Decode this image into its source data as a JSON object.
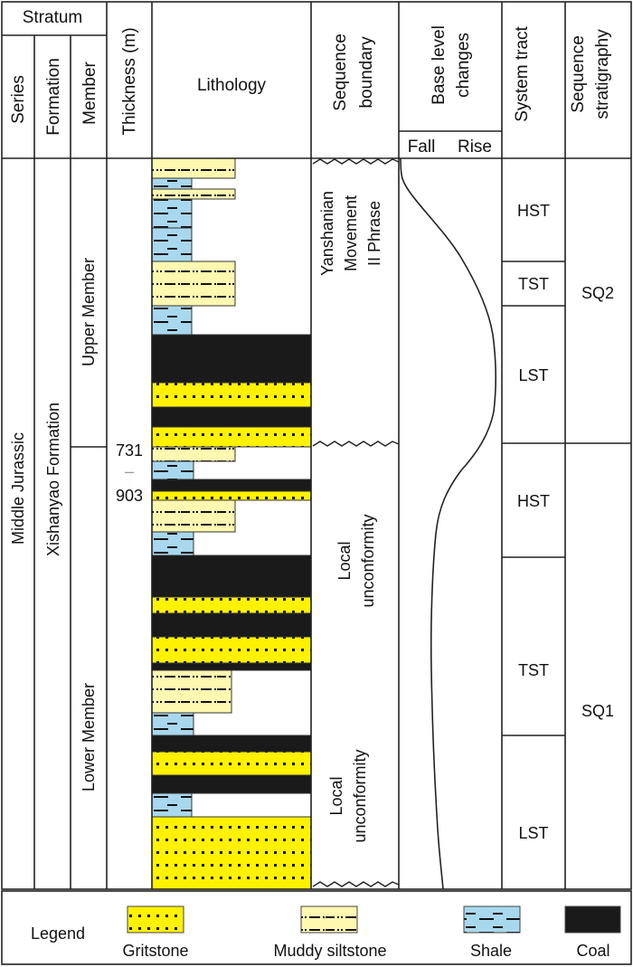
{
  "header": {
    "stratum": "Stratum",
    "series": "Series",
    "formation": "Formation",
    "member": "Member",
    "thickness": "Thickness (m)",
    "lithology": "Lithology",
    "sequence_boundary": [
      "Sequence",
      "boundary"
    ],
    "base_level": [
      "Base level",
      "changes"
    ],
    "fall": "Fall",
    "rise": "Rise",
    "system_tract": "System tract",
    "sequence_stratigraphy": [
      "Sequence",
      "stratigraphy"
    ]
  },
  "body": {
    "series": "Middle Jurassic",
    "formation": "Xishanyao Formation",
    "members": [
      "Upper Member",
      "Lower Member"
    ],
    "thickness": {
      "min": "731",
      "sep": "–",
      "max": "903"
    },
    "boundaries": [
      [
        "Yanshanian",
        "Movement",
        "II Phrase"
      ],
      [
        "Local",
        "unconformity"
      ],
      [
        "Local",
        "unconformity"
      ]
    ],
    "system_tracts": [
      "HST",
      "TST",
      "LST",
      "HST",
      "TST",
      "LST"
    ],
    "sequences": [
      "SQ2",
      "SQ1"
    ],
    "lithology_layers": [
      "silt",
      "shale",
      "silt",
      "shale",
      "shale",
      "silt",
      "shale",
      "coal",
      "grit",
      "coal",
      "grit",
      "silt",
      "shale",
      "coal",
      "grit",
      "silt",
      "shale",
      "coal",
      "grit",
      "coal",
      "grit",
      "coal",
      "silt",
      "shale",
      "coal",
      "grit",
      "coal",
      "shale",
      "grit"
    ]
  },
  "legend": {
    "title": "Legend",
    "items": [
      {
        "key": "grit",
        "label": "Gritstone"
      },
      {
        "key": "silt",
        "label": "Muddy siltstone"
      },
      {
        "key": "shale",
        "label": "Shale"
      },
      {
        "key": "coal",
        "label": "Coal"
      }
    ]
  },
  "colors": {
    "grit": "#fff200",
    "silt": "#fff8b0",
    "shale": "#a8d8ee",
    "coal": "#1a1a1a",
    "line": "#222222"
  }
}
